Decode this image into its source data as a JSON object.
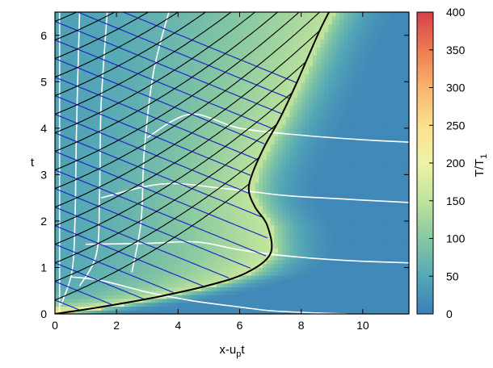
{
  "chart_data": {
    "type": "heatmap",
    "xlabel": "x-u",
    "xlabel_sub": "p",
    "xlabel_suffix": "t",
    "ylabel": "t",
    "colorbar_label": "T/T",
    "colorbar_label_sub": "1",
    "xlim": [
      0,
      11.5
    ],
    "ylim": [
      0,
      6.5
    ],
    "x_ticks": [
      0,
      2,
      4,
      6,
      8,
      10
    ],
    "y_ticks": [
      0,
      1,
      2,
      3,
      4,
      5,
      6
    ],
    "color_range": [
      0,
      400
    ],
    "colorbar_ticks": [
      0,
      50,
      100,
      150,
      200,
      250,
      300,
      350,
      400
    ],
    "colormap": [
      "#3a7fb8",
      "#55a8b6",
      "#87c8a2",
      "#bfe39c",
      "#eef4a8",
      "#fbe08c",
      "#f8b46c",
      "#ec7c52",
      "#d6404a"
    ],
    "shock_front": [
      [
        0,
        0
      ],
      [
        1.5,
        0.15
      ],
      [
        3.2,
        0.35
      ],
      [
        4.9,
        0.6
      ],
      [
        6.2,
        0.88
      ],
      [
        7.0,
        1.3
      ],
      [
        6.9,
        1.9
      ],
      [
        6.5,
        2.3
      ],
      [
        6.3,
        2.65
      ],
      [
        6.4,
        3.0
      ],
      [
        6.8,
        3.6
      ],
      [
        7.3,
        4.2
      ],
      [
        7.8,
        4.9
      ],
      [
        8.2,
        5.5
      ],
      [
        8.6,
        6.1
      ],
      [
        8.9,
        6.5
      ]
    ],
    "white_curves": [
      [
        [
          0.15,
          0.05
        ],
        [
          0.15,
          1.0
        ],
        [
          0.15,
          3.0
        ],
        [
          0.15,
          6.5
        ]
      ],
      [
        [
          0.2,
          0.2
        ],
        [
          0.55,
          0.9
        ],
        [
          0.65,
          2.0
        ],
        [
          0.7,
          4.0
        ],
        [
          0.8,
          6.5
        ]
      ],
      [
        [
          0.8,
          0.6
        ],
        [
          1.35,
          1.3
        ],
        [
          1.45,
          2.6
        ],
        [
          1.5,
          4.5
        ],
        [
          1.7,
          6.5
        ]
      ],
      [
        [
          2.5,
          0.9
        ],
        [
          2.8,
          2.0
        ],
        [
          2.9,
          3.5
        ],
        [
          3.2,
          5.2
        ],
        [
          3.7,
          6.5
        ]
      ],
      [
        [
          0.5,
          0.8
        ],
        [
          1.5,
          0.72
        ],
        [
          3.0,
          0.47
        ],
        [
          4.5,
          0.28
        ],
        [
          6.0,
          0.15
        ],
        [
          7.0,
          0.07
        ],
        [
          8.5,
          0.02
        ],
        [
          9.5,
          0.0
        ]
      ],
      [
        [
          1.0,
          1.5
        ],
        [
          3.0,
          1.52
        ],
        [
          4.6,
          1.55
        ],
        [
          6.0,
          1.38
        ],
        [
          7.5,
          1.25
        ],
        [
          9.5,
          1.15
        ],
        [
          11.5,
          1.1
        ]
      ],
      [
        [
          1.5,
          2.5
        ],
        [
          3.5,
          2.8
        ],
        [
          5.5,
          2.7
        ],
        [
          7.5,
          2.55
        ],
        [
          9.5,
          2.47
        ],
        [
          11.5,
          2.4
        ]
      ],
      [
        [
          3.0,
          3.8
        ],
        [
          4.4,
          4.3
        ],
        [
          6.0,
          4.0
        ],
        [
          8.0,
          3.85
        ],
        [
          10.0,
          3.75
        ],
        [
          11.5,
          3.7
        ]
      ]
    ]
  }
}
